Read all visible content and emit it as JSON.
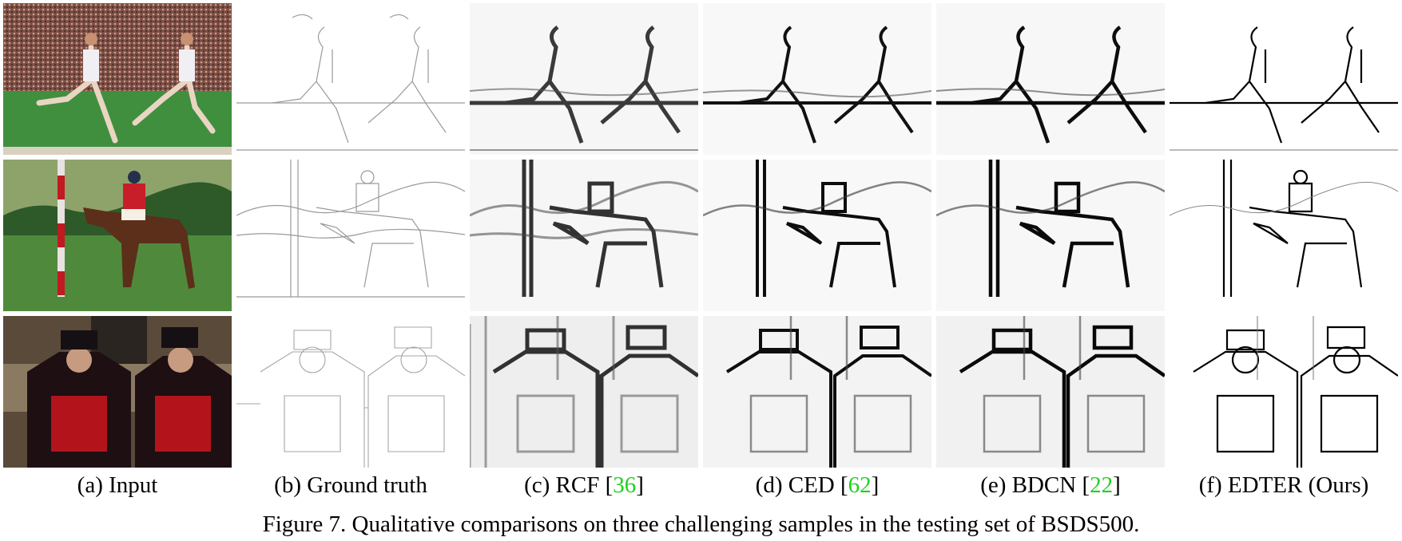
{
  "figure": {
    "caption": "Figure 7. Qualitative comparisons on three challenging samples in the testing set of BSDS500.",
    "columns": [
      {
        "label": "(a) Input",
        "ref": ""
      },
      {
        "label": "(b) Ground truth",
        "ref": ""
      },
      {
        "label": "(c) RCF [",
        "ref": "36",
        "suffix": "]"
      },
      {
        "label": "(d) CED [",
        "ref": "62",
        "suffix": "]"
      },
      {
        "label": "(e) BDCN [",
        "ref": "22",
        "suffix": "]"
      },
      {
        "label": "(f) EDTER (Ours)",
        "ref": ""
      }
    ],
    "rows": [
      {
        "sample": "runners"
      },
      {
        "sample": "polo-rider"
      },
      {
        "sample": "beefeaters"
      }
    ],
    "colors": {
      "reference_link": "#1fd11f",
      "grass": "#3f8f3e",
      "crowd": "#8a5a4c",
      "sky": "#8ea36a",
      "uniform_red": "#b3141c",
      "uniform_dark": "#1d0f12",
      "stone": "#8b7a62"
    }
  }
}
